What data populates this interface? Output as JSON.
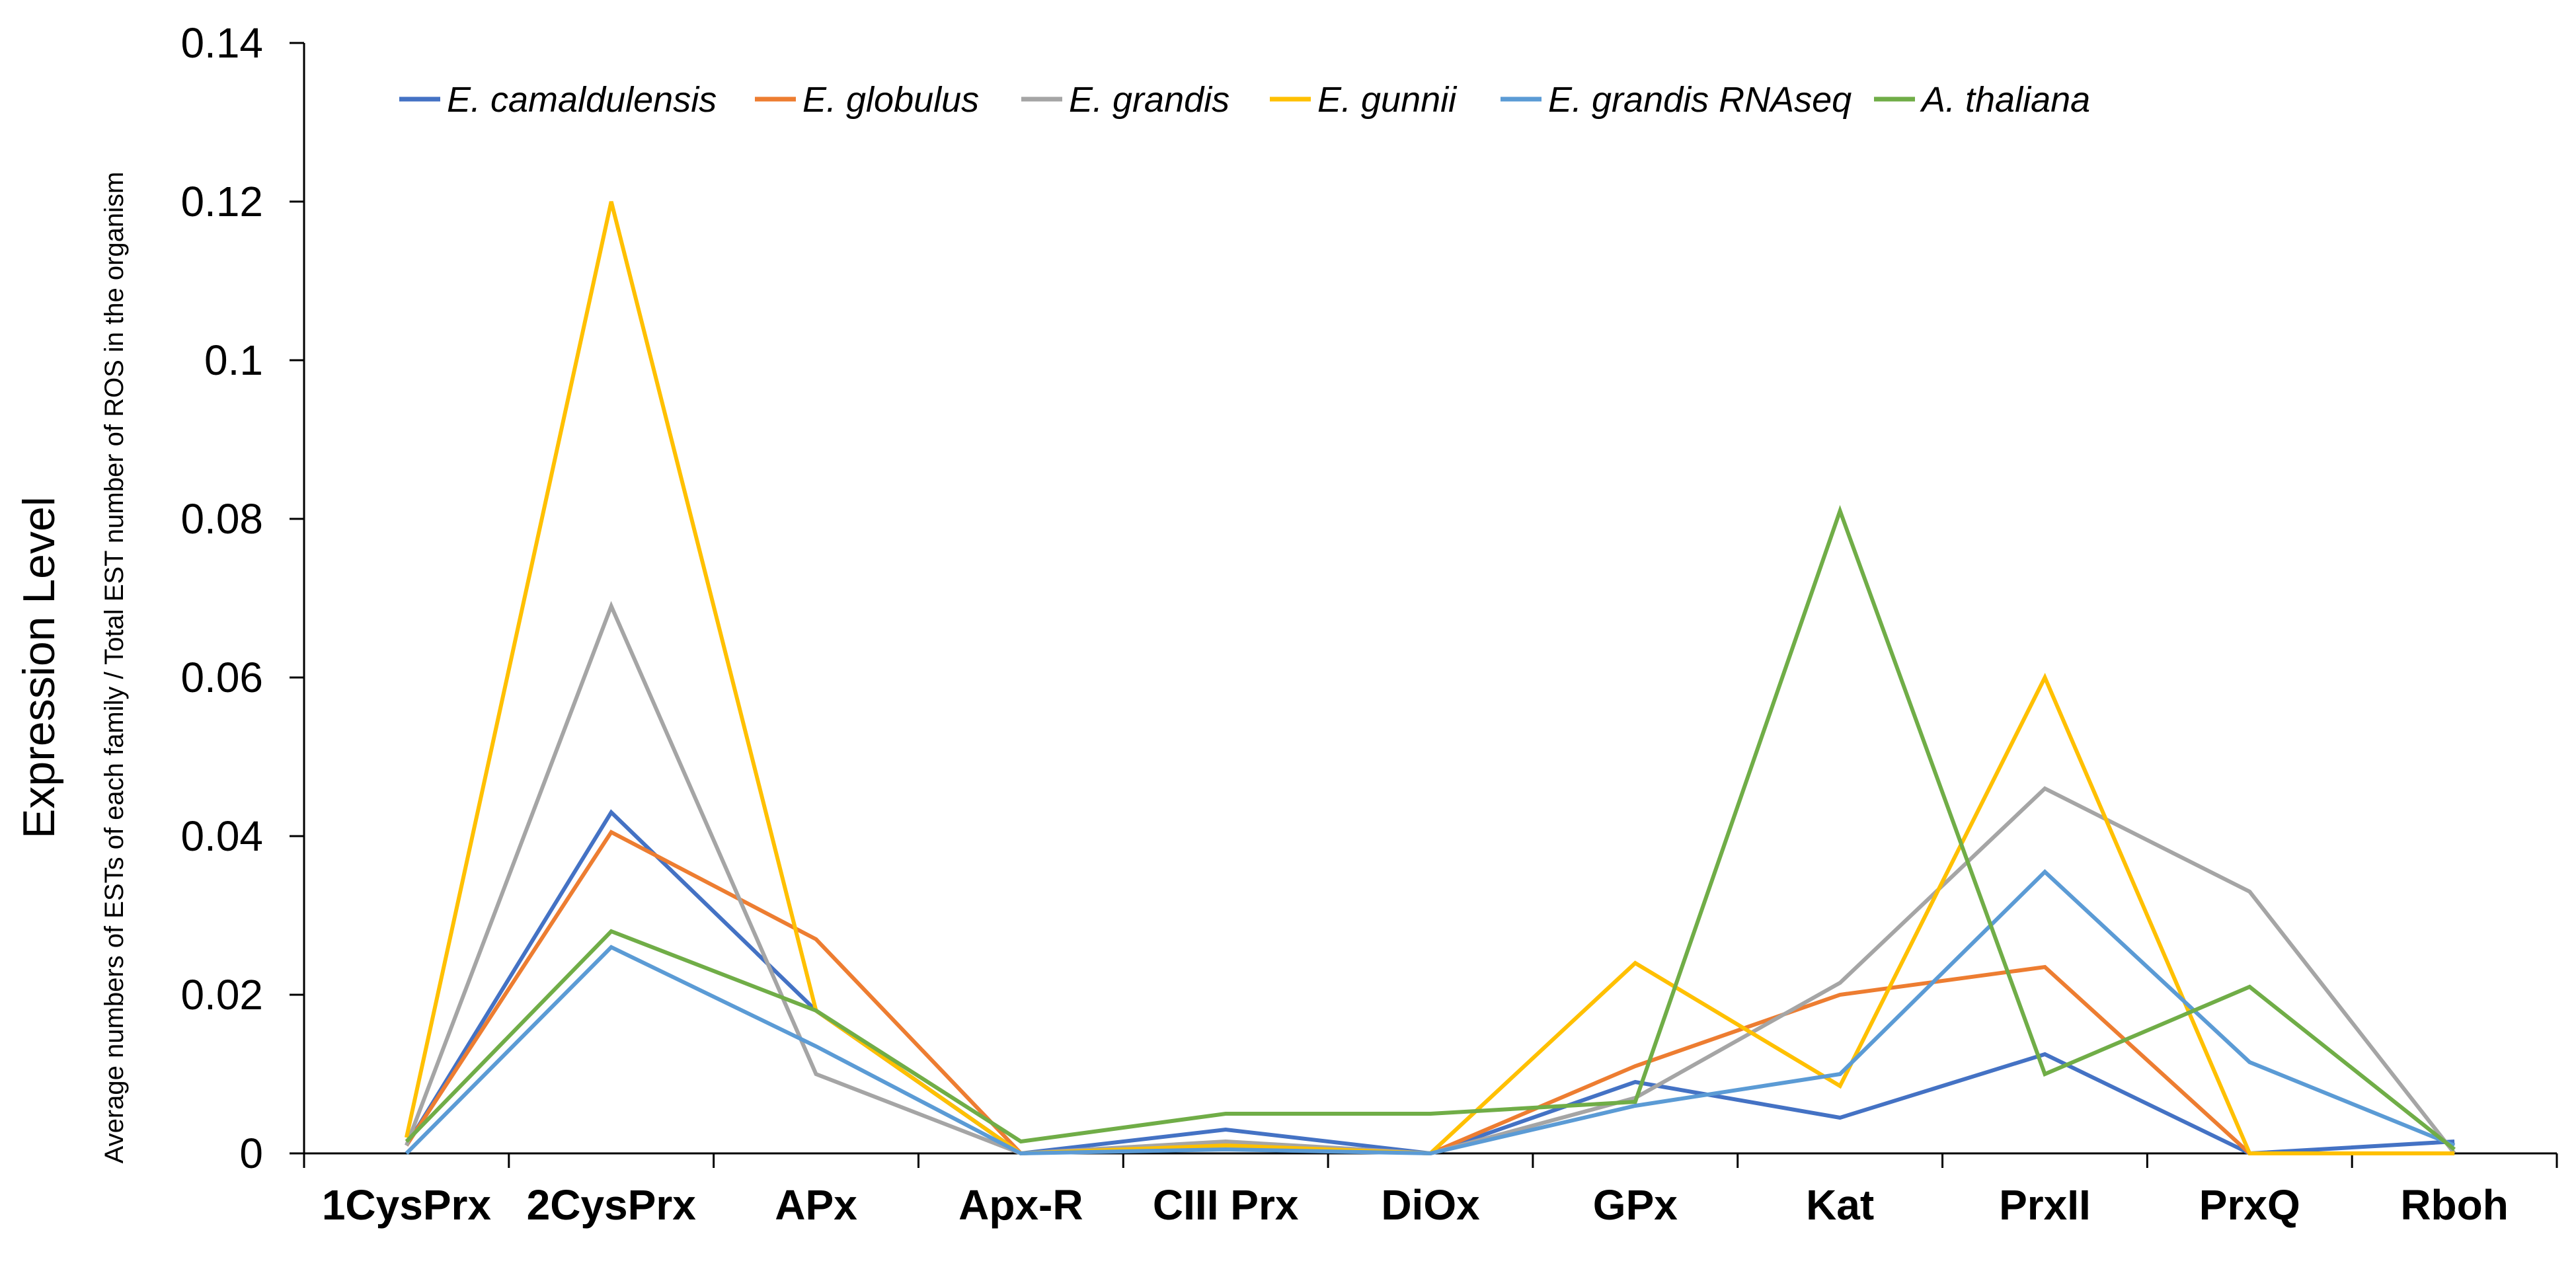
{
  "chart_data": {
    "type": "line",
    "title": "",
    "xlabel": "",
    "ylabel": "Expression Level",
    "ylabel_secondary": "Average numbers of ESTs of each family / Total EST number of ROS in the organism",
    "ylim": [
      0,
      0.14
    ],
    "yticks": [
      0,
      0.02,
      0.04,
      0.06,
      0.08,
      0.1,
      0.12,
      0.14
    ],
    "ytick_labels": [
      "0",
      "0.02",
      "0.04",
      "0.06",
      "0.08",
      "0.1",
      "0.12",
      "0.14"
    ],
    "grid": false,
    "legend_position": "top",
    "categories": [
      "1CysPrx",
      "2CysPrx",
      "APx",
      "Apx-R",
      "CIII Prx",
      "DiOx",
      "GPx",
      "Kat",
      "PrxII",
      "PrxQ",
      "Rboh"
    ],
    "series": [
      {
        "name": "E. camaldulensis",
        "color": "#4472C4",
        "values": [
          0.001,
          0.043,
          0.018,
          0.0,
          0.003,
          0.0,
          0.009,
          0.0045,
          0.0125,
          0.0,
          0.0015
        ]
      },
      {
        "name": "E. globulus",
        "color": "#ED7D31",
        "values": [
          0.001,
          0.0405,
          0.027,
          0.0,
          0.001,
          0.0,
          0.011,
          0.02,
          0.0235,
          0.0,
          0.0
        ]
      },
      {
        "name": "E. grandis",
        "color": "#A5A5A5",
        "values": [
          0.001,
          0.069,
          0.01,
          0.0,
          0.0015,
          0.0,
          0.007,
          0.0215,
          0.046,
          0.033,
          0.0
        ]
      },
      {
        "name": "E. gunnii",
        "color": "#FFC000",
        "values": [
          0.002,
          0.12,
          0.018,
          0.0,
          0.001,
          0.0,
          0.024,
          0.0085,
          0.06,
          0.0,
          0.0
        ]
      },
      {
        "name": "E. grandis RNAseq",
        "color": "#5B9BD5",
        "values": [
          0.0,
          0.026,
          0.0135,
          0.0,
          0.0005,
          0.0,
          0.006,
          0.01,
          0.0355,
          0.0115,
          0.001
        ]
      },
      {
        "name": "A. thaliana",
        "color": "#70AD47",
        "values": [
          0.0015,
          0.028,
          0.018,
          0.0015,
          0.005,
          0.005,
          0.0065,
          0.081,
          0.01,
          0.021,
          0.0005
        ]
      }
    ]
  }
}
